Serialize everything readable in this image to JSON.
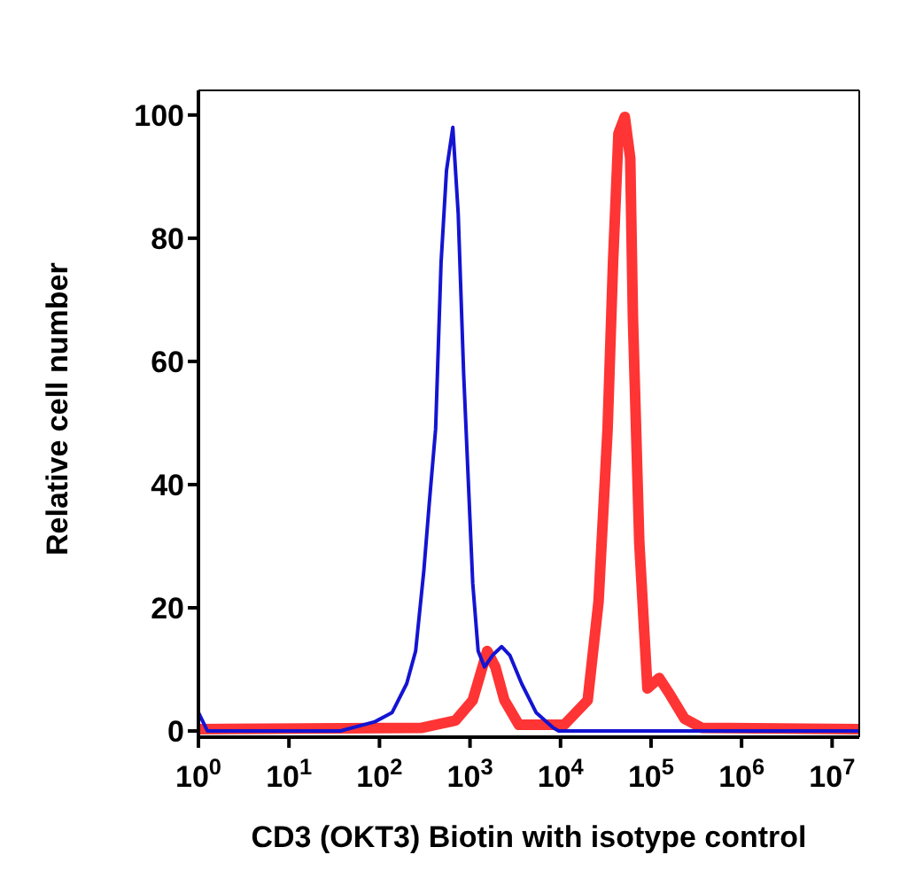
{
  "chart_data": {
    "type": "line",
    "xlabel": "CD3 (OKT3) Biotin with isotype control",
    "ylabel": "Relative cell number",
    "log": "x",
    "xlim": [
      1,
      19950000
    ],
    "xticks": [
      {
        "value": 1,
        "label": "10$^{0}$"
      },
      {
        "value": 10,
        "label": "10$^{1}$"
      },
      {
        "value": 100,
        "label": "10$^{2}$"
      },
      {
        "value": 1000,
        "label": "10$^{3}$"
      },
      {
        "value": 10000,
        "label": "10$^{4}$"
      },
      {
        "value": 100000,
        "label": "10$^{5}$"
      },
      {
        "value": 1000000,
        "label": "10$^{6}$"
      },
      {
        "value": 10000000,
        "label": "10$^{7}$"
      }
    ],
    "ylim": [
      -1,
      104
    ],
    "yticks": [
      0,
      20,
      40,
      60,
      80,
      100
    ],
    "grid": false,
    "legend": false,
    "marker": "none",
    "line_style": "solid",
    "series": [
      {
        "color": "#1414d2",
        "x": [
          1,
          1.26,
          37,
          89,
          138,
          200,
          251,
          309,
          355,
          417,
          479,
          550,
          646,
          741,
          851,
          1072,
          1230,
          1445,
          1778,
          2239,
          2754,
          3715,
          5370,
          8318,
          9550,
          19950000
        ],
        "values": [
          3,
          0,
          0,
          1.5,
          3,
          7.7,
          13,
          26,
          37,
          49,
          76,
          91,
          98,
          84,
          58,
          24,
          13,
          10.4,
          12.3,
          13.7,
          12.3,
          7.7,
          3,
          0.5,
          0,
          0
        ]
      },
      {
        "color": "#ff3434",
        "x": [
          1,
          288,
          692,
          1072,
          1549,
          1905,
          2399,
          3467,
          10965,
          19953,
          26303,
          33113,
          38019,
          43652,
          51286,
          58884,
          63096,
          74131,
          91201,
          123027,
          162181,
          234423,
          363078,
          19950000
        ],
        "values": [
          0.3,
          0.5,
          1.7,
          5,
          13,
          10.4,
          5,
          1,
          1,
          5,
          21,
          49,
          76,
          97,
          99.7,
          93,
          67,
          30.6,
          6.9,
          8.6,
          5.9,
          2,
          0.5,
          0.3
        ]
      }
    ]
  }
}
